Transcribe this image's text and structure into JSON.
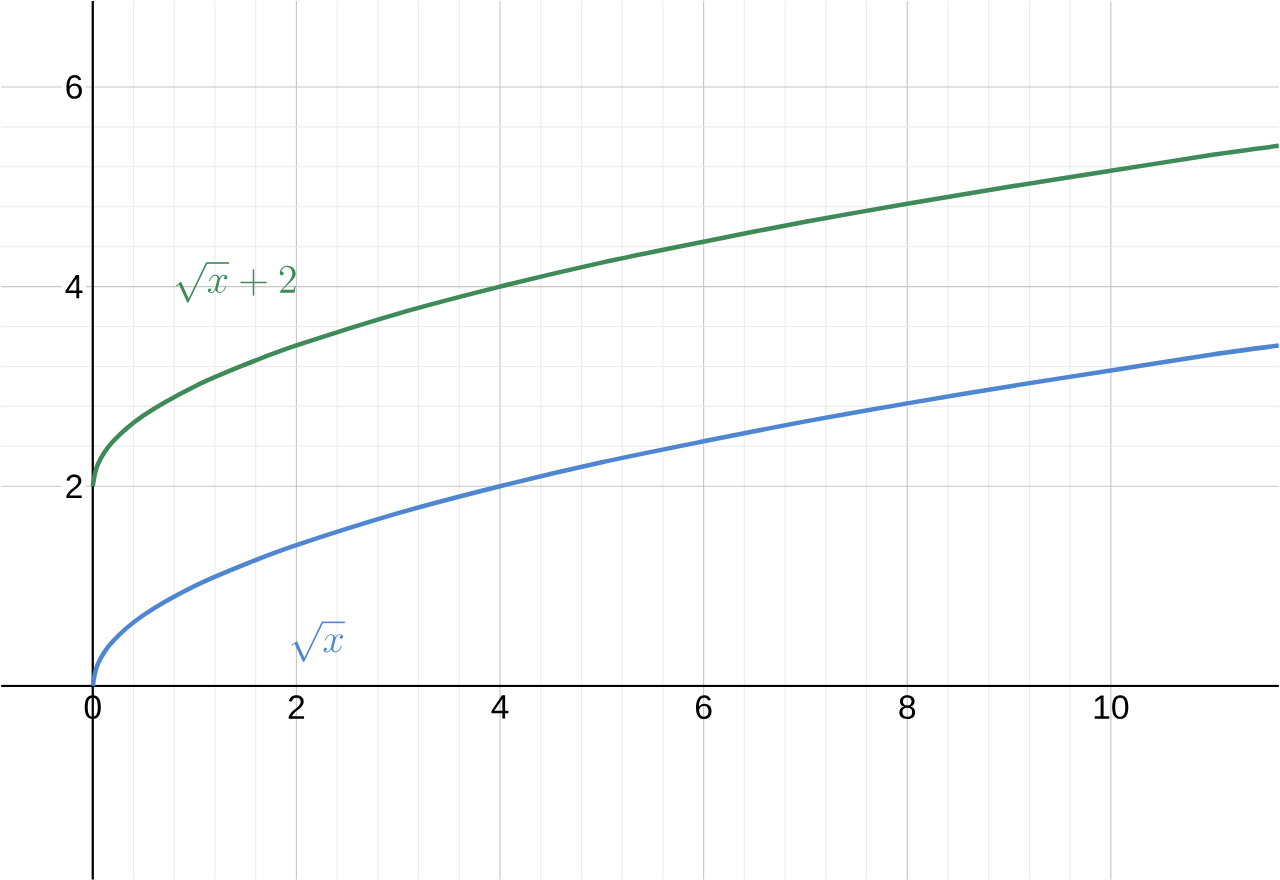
{
  "chart_data": {
    "type": "line",
    "xlim": [
      -0.9,
      11.65
    ],
    "ylim": [
      -1.94,
      6.86
    ],
    "xticks": [
      0,
      2,
      4,
      6,
      8,
      10
    ],
    "yticks": [
      2,
      4,
      6
    ],
    "grid": true,
    "marker": "none",
    "line_style": "solid",
    "x": [
      0,
      0.05,
      0.2,
      0.5,
      1,
      1.5,
      2,
      3,
      4,
      5,
      6,
      7,
      8,
      9,
      10,
      11,
      11.65
    ],
    "series": [
      {
        "name": "\\sqrt{x}+2",
        "color": "#3f8a59",
        "values": [
          2,
          2.22,
          2.45,
          2.71,
          3,
          3.22,
          3.41,
          3.73,
          4,
          4.24,
          4.45,
          4.65,
          4.83,
          5,
          5.16,
          5.32,
          5.41
        ]
      },
      {
        "name": "\\sqrt{x}",
        "color": "#4f86d1",
        "values": [
          0,
          0.22,
          0.45,
          0.71,
          1,
          1.22,
          1.41,
          1.73,
          2,
          2.24,
          2.45,
          2.65,
          2.83,
          3,
          3.16,
          3.32,
          3.41
        ]
      }
    ]
  }
}
